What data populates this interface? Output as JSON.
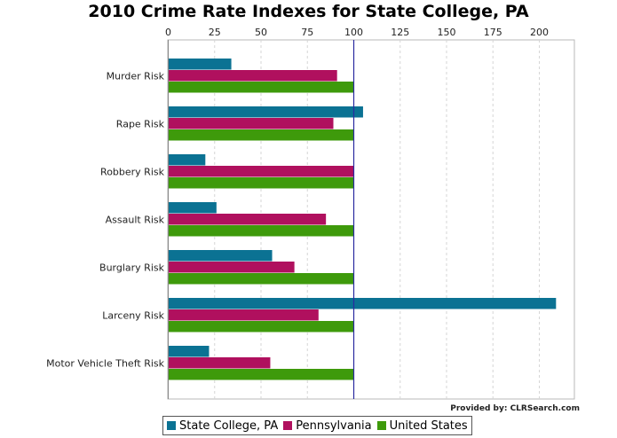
{
  "chart_data": {
    "type": "bar",
    "orientation": "horizontal",
    "title": "2010 Crime Rate Indexes for State College, PA",
    "xlabel": "",
    "ylabel": "",
    "xlim": [
      0,
      210
    ],
    "xticks": [
      0,
      25,
      50,
      75,
      100,
      125,
      150,
      175,
      200
    ],
    "xtick_labels": [
      "0",
      "25",
      "50",
      "75",
      "100",
      "125",
      "150",
      "175",
      "200"
    ],
    "reference_line": 100,
    "grid": true,
    "legend_position": "bottom",
    "categories": [
      "Murder Risk",
      "Rape Risk",
      "Robbery Risk",
      "Assault Risk",
      "Burglary Risk",
      "Larceny Risk",
      "Motor Vehicle Theft Risk"
    ],
    "series": [
      {
        "name": "State College, PA",
        "color": "#0b7293",
        "values": [
          34,
          105,
          20,
          26,
          56,
          209,
          22
        ]
      },
      {
        "name": "Pennsylvania",
        "color": "#b0105e",
        "values": [
          91,
          89,
          100,
          85,
          68,
          81,
          55
        ]
      },
      {
        "name": "United States",
        "color": "#3e9a0b",
        "values": [
          100,
          100,
          100,
          100,
          100,
          100,
          100
        ]
      }
    ]
  },
  "credit": "Provided by: CLRSearch.com"
}
